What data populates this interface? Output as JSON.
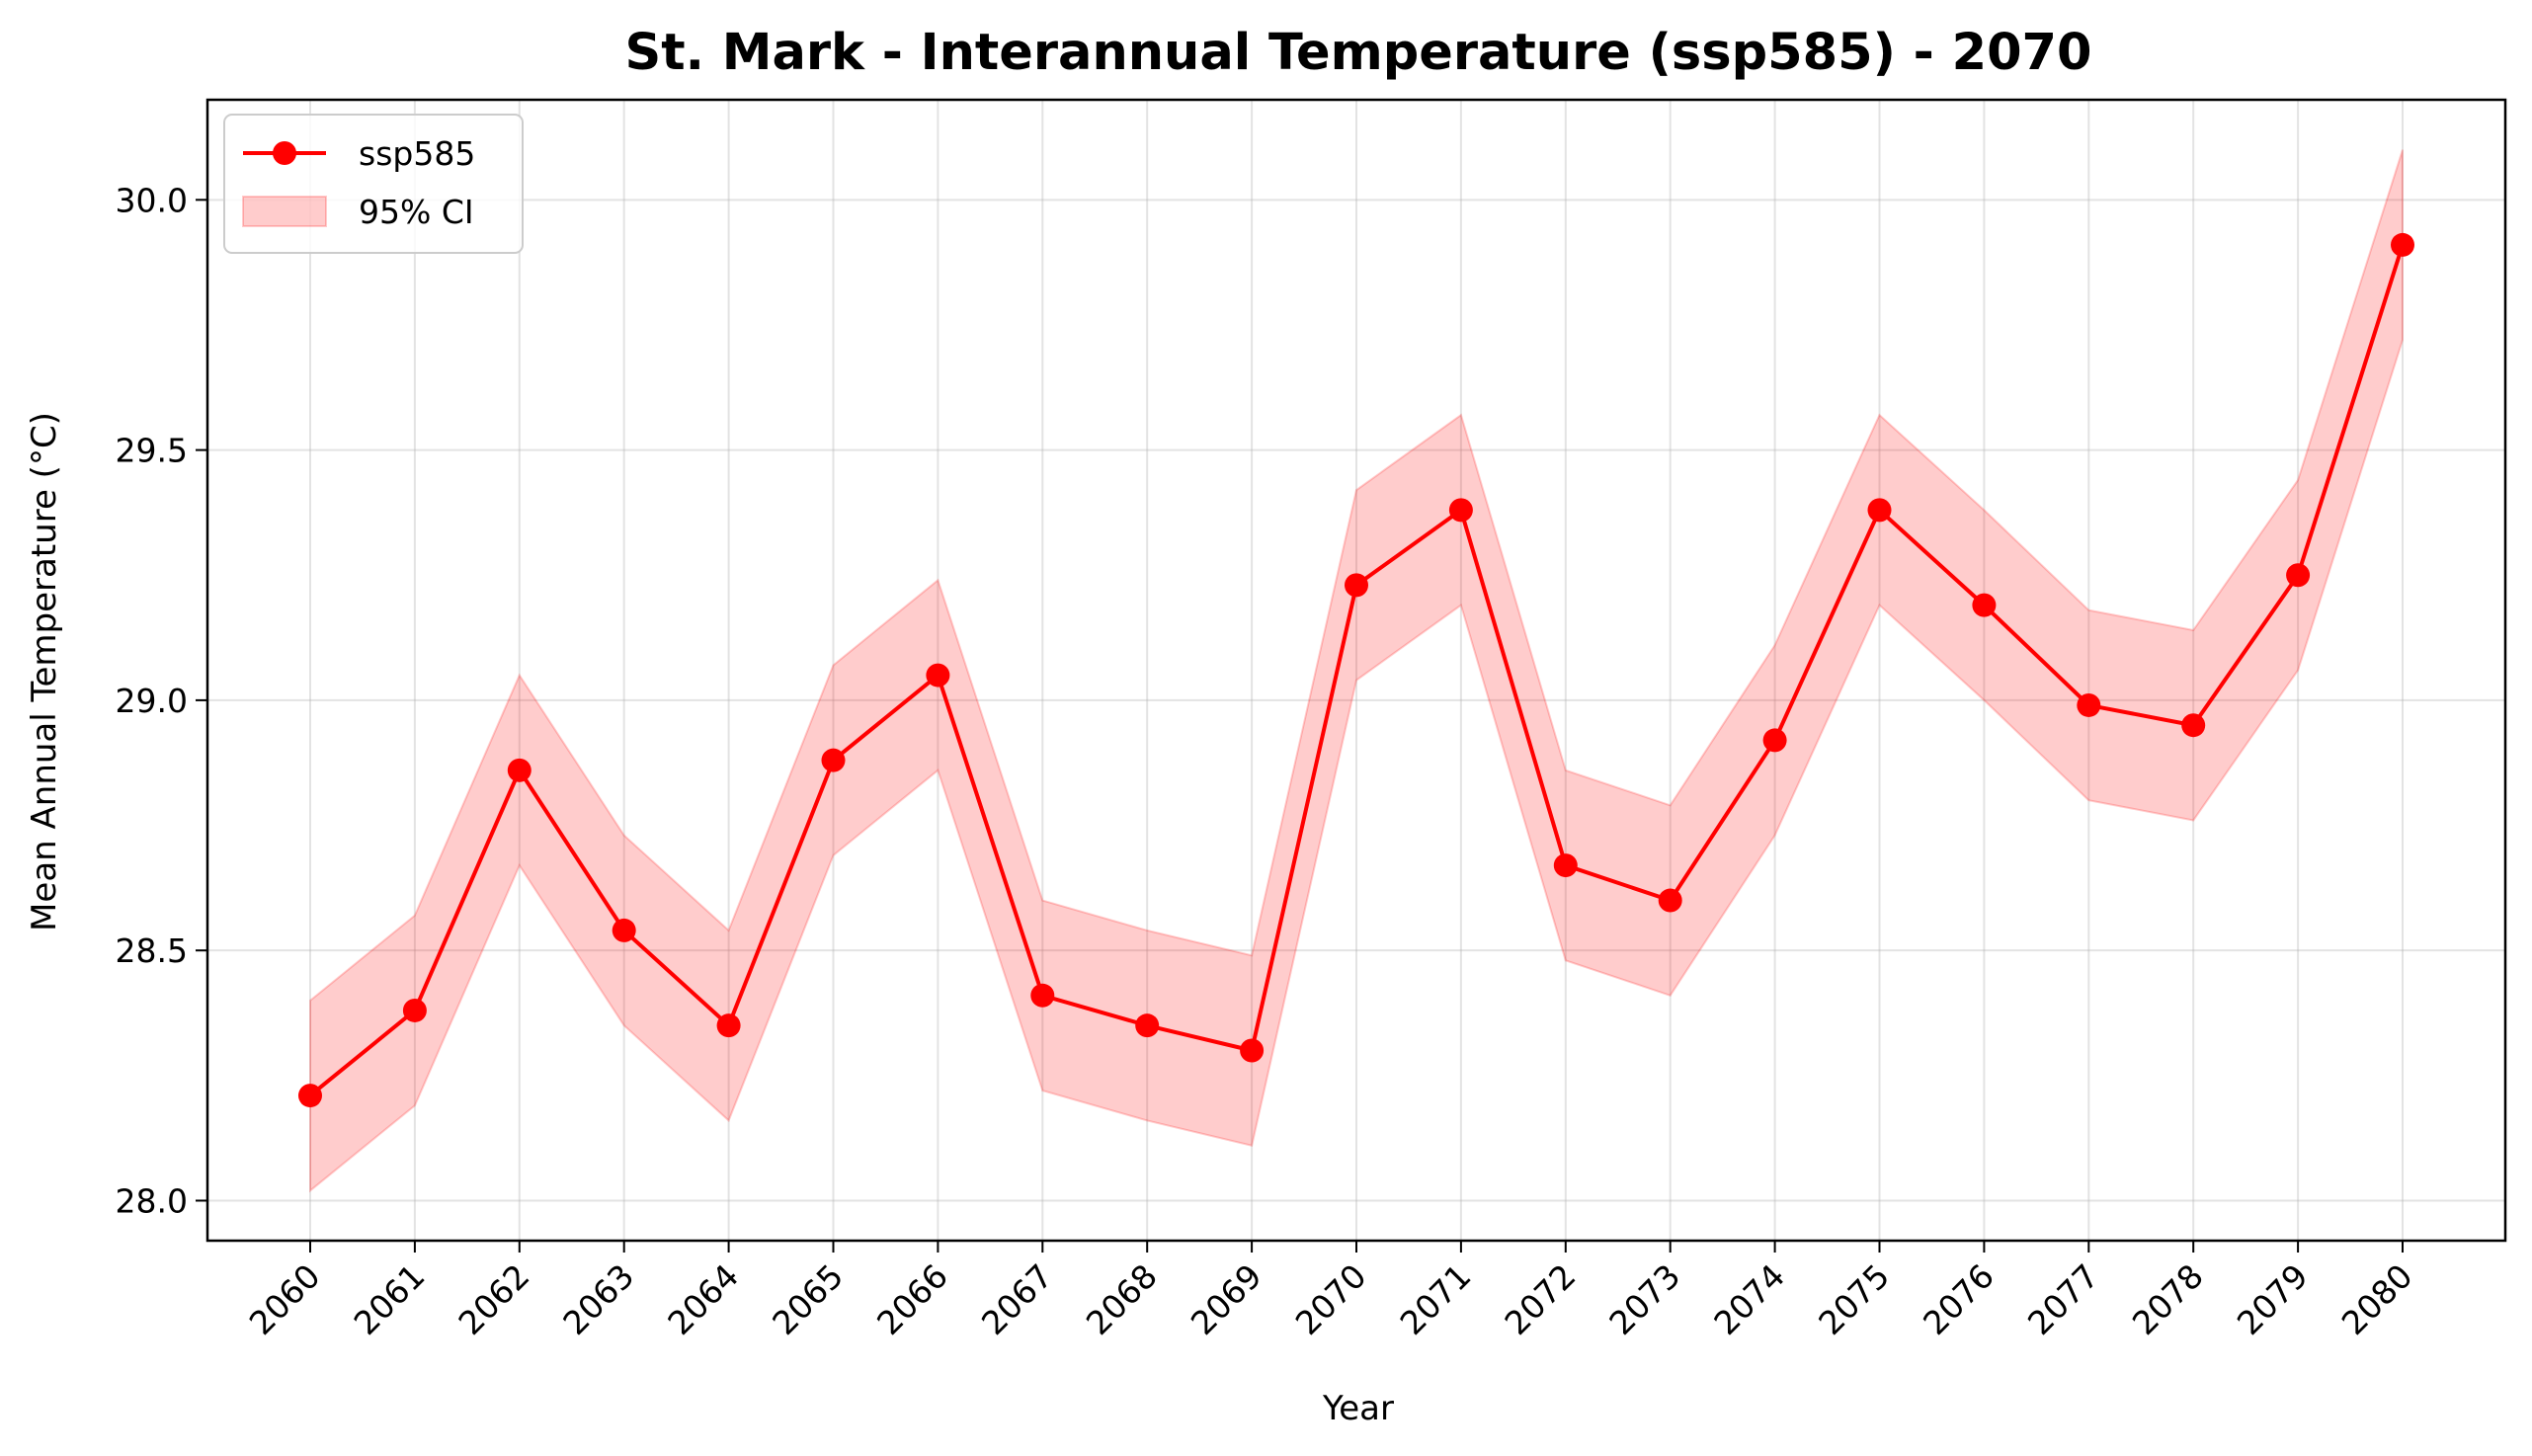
{
  "chart_data": {
    "type": "line",
    "title": "St. Mark - Interannual Temperature (ssp585) - 2070",
    "xlabel": "Year",
    "ylabel": "Mean Annual Temperature (°C)",
    "x": [
      "2060",
      "2061",
      "2062",
      "2063",
      "2064",
      "2065",
      "2066",
      "2067",
      "2068",
      "2069",
      "2070",
      "2071",
      "2072",
      "2073",
      "2074",
      "2075",
      "2076",
      "2077",
      "2078",
      "2079",
      "2080"
    ],
    "ylim": [
      27.92,
      30.2
    ],
    "yticks": [
      "28.0",
      "28.5",
      "29.0",
      "29.5",
      "30.0"
    ],
    "grid": true,
    "legend_position": "upper-left",
    "series": [
      {
        "name": "ssp585",
        "color": "#ff0000",
        "values": [
          28.21,
          28.38,
          28.86,
          28.54,
          28.35,
          28.88,
          29.05,
          28.41,
          28.35,
          28.3,
          29.23,
          29.38,
          28.67,
          28.6,
          28.92,
          29.38,
          29.19,
          28.99,
          28.95,
          29.25,
          29.91
        ],
        "ci_lower": [
          28.02,
          28.19,
          28.67,
          28.35,
          28.16,
          28.69,
          28.86,
          28.22,
          28.16,
          28.11,
          29.04,
          29.19,
          28.48,
          28.41,
          28.73,
          29.19,
          29.0,
          28.8,
          28.76,
          29.06,
          29.72
        ],
        "ci_upper": [
          28.4,
          28.57,
          29.05,
          28.73,
          28.54,
          29.07,
          29.24,
          28.6,
          28.54,
          28.49,
          29.42,
          29.57,
          28.86,
          28.79,
          29.11,
          29.57,
          29.38,
          29.18,
          29.14,
          29.44,
          30.1
        ]
      }
    ],
    "legend": [
      {
        "label": "ssp585",
        "kind": "line-marker",
        "color": "#ff0000"
      },
      {
        "label": "95% CI",
        "kind": "band",
        "color": "#ff0000"
      }
    ]
  }
}
